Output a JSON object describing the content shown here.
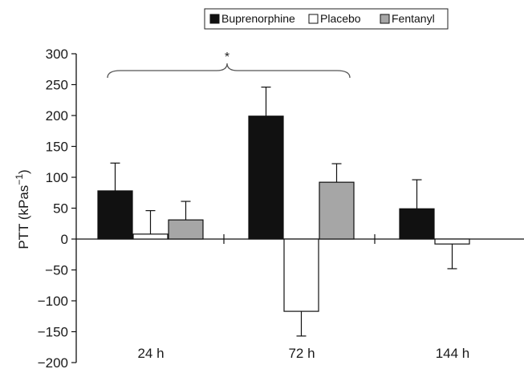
{
  "chart_data": {
    "type": "bar",
    "categories": [
      "24 h",
      "72 h",
      "144 h"
    ],
    "series": [
      {
        "name": "Buprenorphine",
        "color": "#111111",
        "values": [
          78,
          199,
          49
        ],
        "error": [
          45,
          47,
          47
        ]
      },
      {
        "name": "Placebo",
        "color": "#ffffff",
        "values": [
          8,
          -117,
          -8
        ],
        "error": [
          38,
          40,
          40
        ]
      },
      {
        "name": "Fentanyl",
        "color": "#a6a6a6",
        "values": [
          31,
          92,
          null
        ],
        "error": [
          30,
          30,
          null
        ]
      }
    ],
    "ylabel": "PTT (kPas⁻¹)",
    "ylabel_main": "PTT (kPas",
    "ylabel_sup": "−1",
    "ylabel_close": ")",
    "ylim": [
      -200,
      300
    ],
    "yticks": [
      300,
      250,
      200,
      150,
      100,
      50,
      0,
      -50,
      -100,
      -150,
      -200
    ],
    "ytick_labels": [
      "300",
      "250",
      "200",
      "150",
      "100",
      "50",
      "0",
      "−50",
      "−100",
      "−150",
      "−200"
    ],
    "annotation": "*",
    "legend_position": "top-center",
    "grid": false
  }
}
